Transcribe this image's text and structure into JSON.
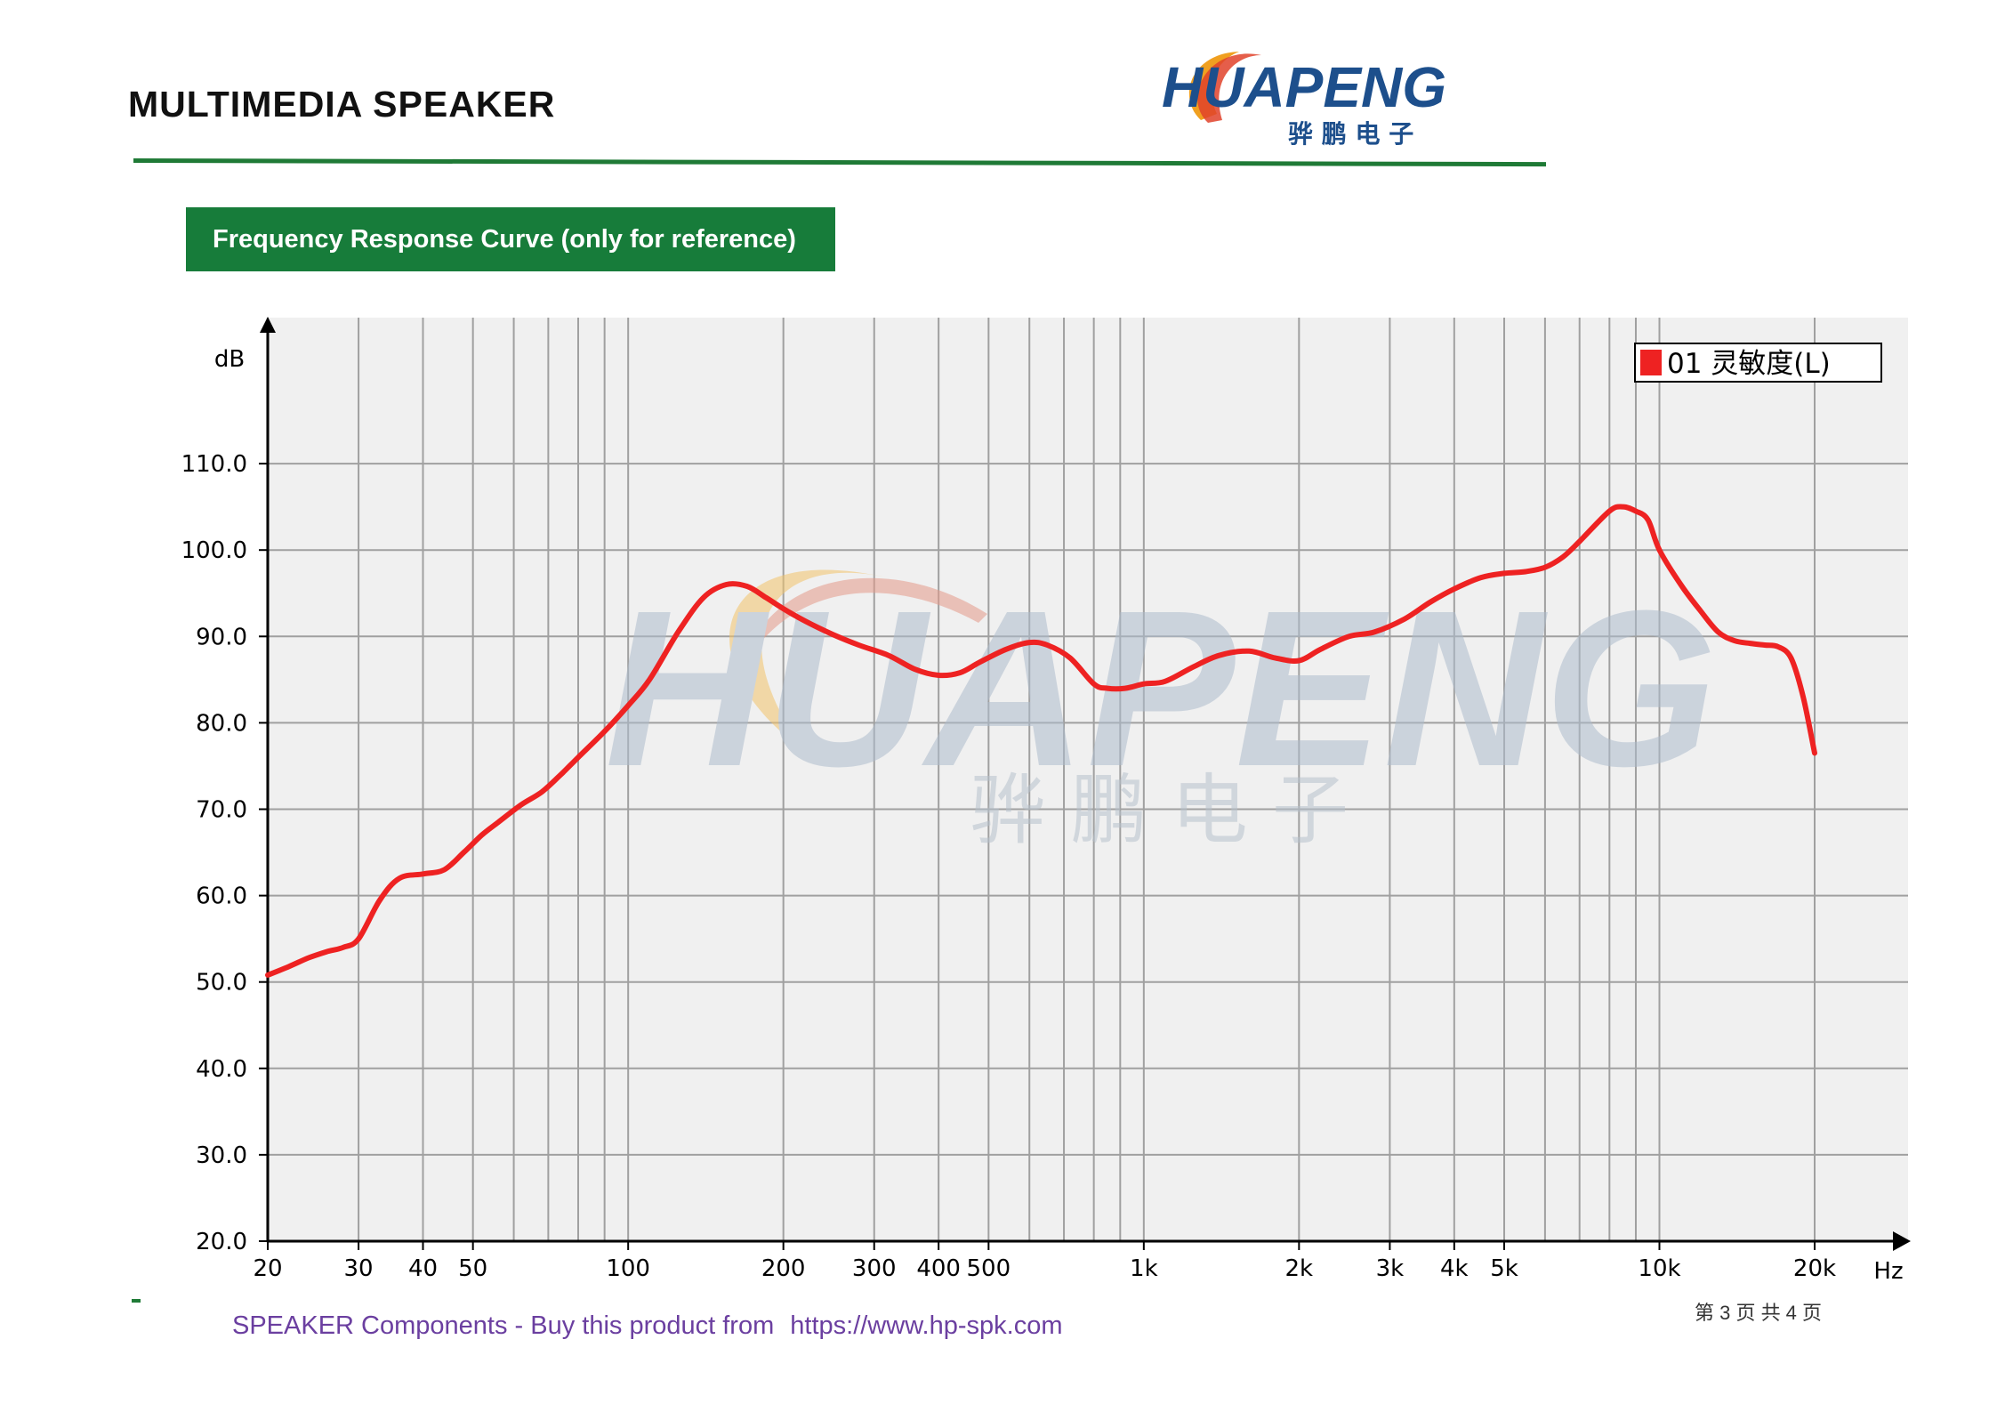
{
  "header": {
    "title": "MULTIMEDIA SPEAKER",
    "logo_text": "HUAPENG",
    "logo_subtext": "骅 鹏 电 子",
    "rule_color": "#1f7a36"
  },
  "section": {
    "banner": "Frequency Response Curve (only for reference)",
    "banner_color": "#177c3a"
  },
  "watermark": {
    "text": "HUAPENG",
    "subtext": "骅 鹏 电 子"
  },
  "chart_data": {
    "type": "line",
    "title": "",
    "xlabel": "Hz",
    "ylabel": "dB",
    "x_scale": "log",
    "xlim": [
      20,
      20000
    ],
    "ylim": [
      20,
      120
    ],
    "grid": true,
    "legend_position": "top-right",
    "x_ticks": [
      {
        "value": 20,
        "label": "20"
      },
      {
        "value": 30,
        "label": "30"
      },
      {
        "value": 40,
        "label": "40"
      },
      {
        "value": 50,
        "label": "50"
      },
      {
        "value": 100,
        "label": "100"
      },
      {
        "value": 200,
        "label": "200"
      },
      {
        "value": 300,
        "label": "300"
      },
      {
        "value": 400,
        "label": "400"
      },
      {
        "value": 500,
        "label": "500"
      },
      {
        "value": 1000,
        "label": "1k"
      },
      {
        "value": 2000,
        "label": "2k"
      },
      {
        "value": 3000,
        "label": "3k"
      },
      {
        "value": 4000,
        "label": "4k"
      },
      {
        "value": 5000,
        "label": "5k"
      },
      {
        "value": 10000,
        "label": "10k"
      },
      {
        "value": 20000,
        "label": "20k"
      }
    ],
    "y_ticks": [
      {
        "value": 20,
        "label": "20.0"
      },
      {
        "value": 30,
        "label": "30.0"
      },
      {
        "value": 40,
        "label": "40.0"
      },
      {
        "value": 50,
        "label": "50.0"
      },
      {
        "value": 60,
        "label": "60.0"
      },
      {
        "value": 70,
        "label": "70.0"
      },
      {
        "value": 80,
        "label": "80.0"
      },
      {
        "value": 90,
        "label": "90.0"
      },
      {
        "value": 100,
        "label": "100.0"
      },
      {
        "value": 110,
        "label": "110.0"
      }
    ],
    "series": [
      {
        "name": "01 灵敏度(L)",
        "color": "#ee2222",
        "x": [
          20,
          22,
          24,
          26,
          28,
          30,
          33,
          36,
          40,
          44,
          48,
          52,
          56,
          62,
          68,
          74,
          80,
          90,
          100,
          110,
          125,
          140,
          155,
          170,
          185,
          200,
          220,
          250,
          280,
          320,
          360,
          400,
          440,
          480,
          540,
          600,
          650,
          720,
          800,
          850,
          920,
          1000,
          1100,
          1250,
          1400,
          1600,
          1800,
          2000,
          2200,
          2500,
          2800,
          3200,
          3600,
          4000,
          4500,
          5000,
          5500,
          6000,
          6500,
          7000,
          8000,
          8500,
          9000,
          9500,
          10000,
          11000,
          12000,
          13000,
          14000,
          15000,
          16000,
          17000,
          18000,
          19000,
          20000
        ],
        "y": [
          50.8,
          51.8,
          52.8,
          53.5,
          54.0,
          55.0,
          59.5,
          62.0,
          62.5,
          63.0,
          65.0,
          67.0,
          68.5,
          70.5,
          72.0,
          74.0,
          76.0,
          79.0,
          82.0,
          85.0,
          90.5,
          94.5,
          96.0,
          95.8,
          94.5,
          93.2,
          91.8,
          90.2,
          89.0,
          87.8,
          86.2,
          85.5,
          85.8,
          87.0,
          88.5,
          89.3,
          89.0,
          87.5,
          84.5,
          84.0,
          84.0,
          84.5,
          84.8,
          86.5,
          87.8,
          88.3,
          87.5,
          87.2,
          88.5,
          90.0,
          90.5,
          92.0,
          94.0,
          95.5,
          96.8,
          97.3,
          97.5,
          98.0,
          99.2,
          101.0,
          104.5,
          105.0,
          104.5,
          103.5,
          100.0,
          96.0,
          93.0,
          90.5,
          89.5,
          89.2,
          89.0,
          88.8,
          87.5,
          83.0,
          76.5
        ]
      }
    ]
  },
  "footer": {
    "source_text": "SPEAKER Components - Buy this product from",
    "url": "https://www.hp-spk.com",
    "page_label": "第 3 页 共 4 页"
  }
}
